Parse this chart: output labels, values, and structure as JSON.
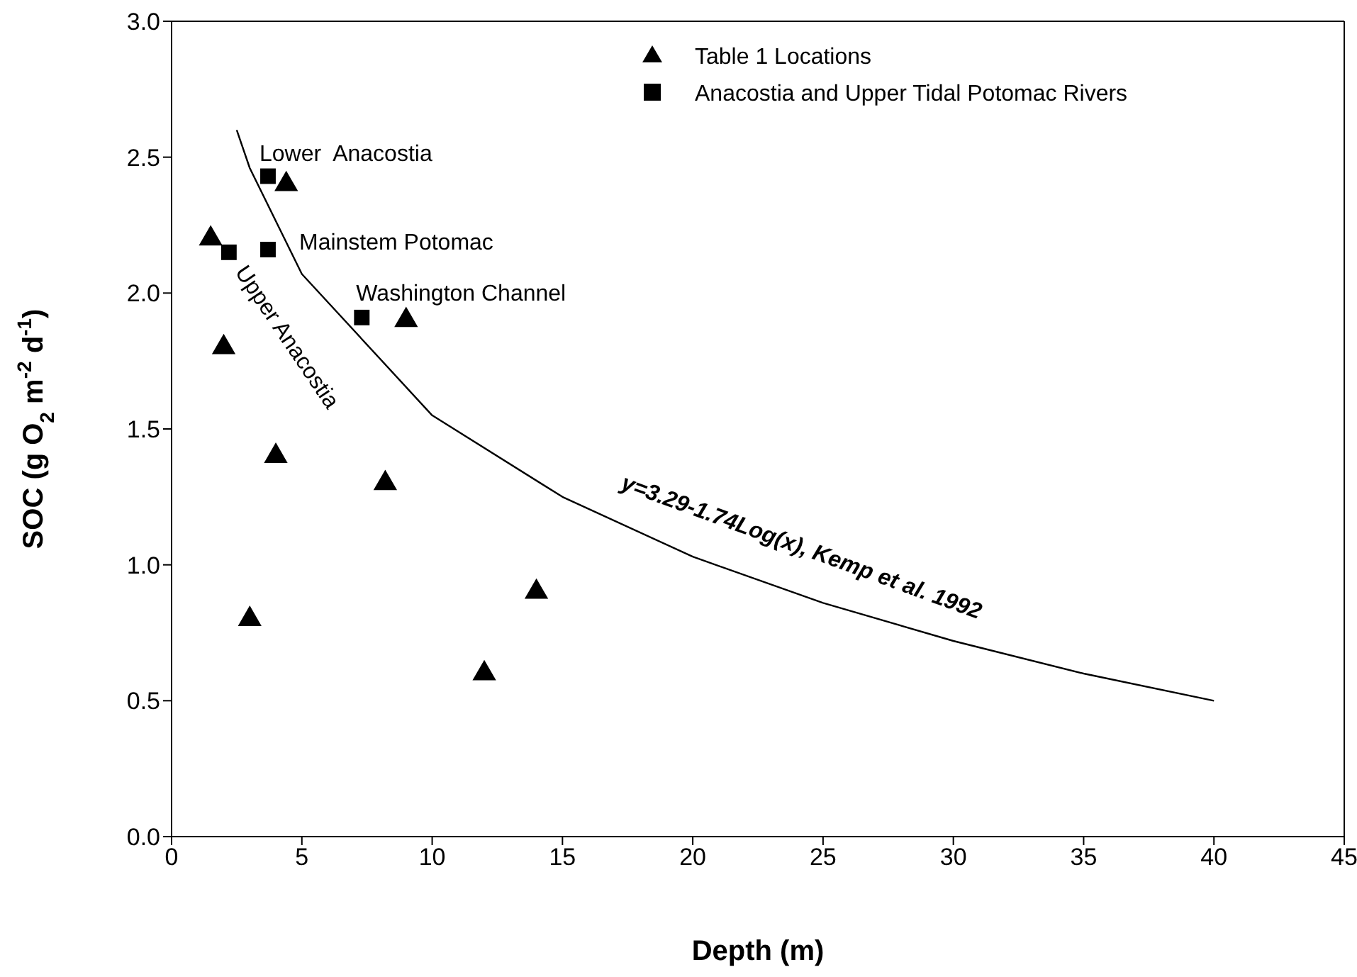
{
  "chart_data": {
    "type": "scatter",
    "xlabel": "Depth (m)",
    "ylabel": "SOC (g O$_{2}$ m$^{-2}$ d$^{-1}$)",
    "xlim": [
      0,
      45
    ],
    "xticks": [
      0,
      5,
      10,
      15,
      20,
      25,
      30,
      35,
      40,
      45
    ],
    "ylim": [
      0,
      3
    ],
    "yticks": [
      {
        "value": 0,
        "label": "0.0"
      },
      {
        "value": 0.5,
        "label": "0.5"
      },
      {
        "value": 1,
        "label": "1.0"
      },
      {
        "value": 1.5,
        "label": "1.5"
      },
      {
        "value": 2,
        "label": "2.0"
      },
      {
        "value": 2.5,
        "label": "2.5"
      },
      {
        "value": 3,
        "label": "3.0"
      }
    ],
    "legend": "top right",
    "series": [
      {
        "name": "Table 1 Locations",
        "color": "#000000",
        "marker": "triangle",
        "x": [
          1.5,
          4.4,
          2,
          4,
          3,
          8.2,
          9,
          12,
          14
        ],
        "values": [
          2.2,
          2.4,
          1.8,
          1.4,
          0.8,
          1.3,
          1.9,
          0.6,
          0.9
        ]
      },
      {
        "name": "Anacostia and Upper Tidal Potomac Rivers",
        "color": "#000000",
        "marker": "square",
        "x": [
          3.7,
          2.2,
          3.7,
          7.3
        ],
        "values": [
          2.43,
          2.15,
          2.16,
          1.91
        ]
      },
      {
        "type": "line",
        "color": "#000000",
        "marker": "none",
        "line_style": "solid",
        "x": [
          2.5,
          3,
          5,
          10,
          15,
          20,
          25,
          30,
          35,
          40
        ],
        "values": [
          2.6,
          2.46,
          2.07,
          1.55,
          1.25,
          1.03,
          0.86,
          0.72,
          0.6,
          0.5
        ]
      }
    ],
    "annotations": [
      {
        "text": "Lower  Anacostia",
        "x": 3.7,
        "y": 2.43
      },
      {
        "text": "Mainstem Potomac",
        "x": 3.7,
        "y": 2.16
      },
      {
        "text": "Washington Channel",
        "x": 7.3,
        "y": 1.91
      },
      {
        "text": "Upper Anacostia",
        "x": 2.2,
        "y": 2.15
      },
      "y=3.29-1.74Log(x), Kemp et al. 1992"
    ]
  }
}
